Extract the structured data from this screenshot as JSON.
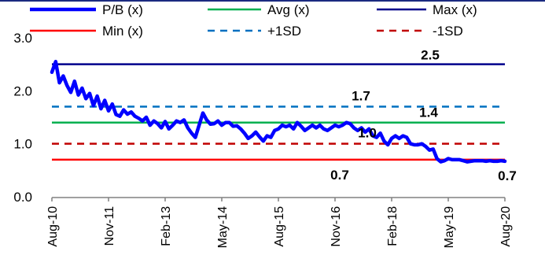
{
  "chart_data": {
    "type": "line",
    "ylim": [
      0.0,
      3.0
    ],
    "yticks": [
      "0.0",
      "1.0",
      "2.0",
      "3.0"
    ],
    "xticks": [
      "Aug-10",
      "Nov-11",
      "Feb-13",
      "May-14",
      "Aug-15",
      "Nov-16",
      "Feb-18",
      "May-19",
      "Aug-20"
    ],
    "grid": false,
    "legend": "top",
    "series": [
      {
        "name": "P/B (x)",
        "color": "#0000ff",
        "style": "solid-thick",
        "x": [
          "Aug-10",
          "Sep-10",
          "Oct-10",
          "Nov-10",
          "Dec-10",
          "Jan-11",
          "Feb-11",
          "Mar-11",
          "Apr-11",
          "May-11",
          "Jun-11",
          "Jul-11",
          "Aug-11",
          "Sep-11",
          "Oct-11",
          "Nov-11",
          "Dec-11",
          "Jan-12",
          "Feb-12",
          "Mar-12",
          "Apr-12",
          "May-12",
          "Jun-12",
          "Jul-12",
          "Aug-12",
          "Sep-12",
          "Oct-12",
          "Nov-12",
          "Dec-12",
          "Jan-13",
          "Feb-13",
          "Mar-13",
          "Apr-13",
          "May-13",
          "Jun-13",
          "Jul-13",
          "Aug-13",
          "Sep-13",
          "Oct-13",
          "Nov-13",
          "Dec-13",
          "Jan-14",
          "Feb-14",
          "Mar-14",
          "Apr-14",
          "May-14",
          "Jun-14",
          "Jul-14",
          "Aug-14",
          "Sep-14",
          "Oct-14",
          "Nov-14",
          "Dec-14",
          "Jan-15",
          "Feb-15",
          "Mar-15",
          "Apr-15",
          "May-15",
          "Jun-15",
          "Jul-15",
          "Aug-15",
          "Sep-15",
          "Oct-15",
          "Nov-15",
          "Dec-15",
          "Jan-16",
          "Feb-16",
          "Mar-16",
          "Apr-16",
          "May-16",
          "Jun-16",
          "Jul-16",
          "Aug-16",
          "Sep-16",
          "Oct-16",
          "Nov-16",
          "Dec-16",
          "Jan-17",
          "Feb-17",
          "Mar-17",
          "Apr-17",
          "May-17",
          "Jun-17",
          "Jul-17",
          "Aug-17",
          "Sep-17",
          "Oct-17",
          "Nov-17",
          "Dec-17",
          "Jan-18",
          "Feb-18",
          "Mar-18",
          "Apr-18",
          "May-18",
          "Jun-18",
          "Jul-18",
          "Aug-18",
          "Sep-18",
          "Oct-18",
          "Nov-18",
          "Dec-18",
          "Jan-19",
          "Feb-19",
          "Mar-19",
          "Apr-19",
          "May-19",
          "Jun-19",
          "Jul-19",
          "Aug-19",
          "Sep-19",
          "Oct-19",
          "Nov-19",
          "Dec-19",
          "Jan-20",
          "Feb-20",
          "Mar-20",
          "Apr-20",
          "May-20",
          "Jun-20",
          "Jul-20",
          "Aug-20"
        ],
        "values": [
          2.35,
          2.55,
          2.15,
          2.28,
          2.1,
          1.97,
          2.18,
          1.92,
          2.05,
          1.85,
          1.95,
          1.72,
          1.9,
          1.66,
          1.82,
          1.62,
          1.75,
          1.55,
          1.52,
          1.64,
          1.56,
          1.6,
          1.52,
          1.48,
          1.43,
          1.5,
          1.35,
          1.43,
          1.38,
          1.3,
          1.42,
          1.28,
          1.35,
          1.43,
          1.4,
          1.45,
          1.3,
          1.2,
          1.12,
          1.35,
          1.58,
          1.45,
          1.37,
          1.38,
          1.43,
          1.35,
          1.4,
          1.4,
          1.33,
          1.34,
          1.28,
          1.2,
          1.1,
          1.15,
          1.22,
          1.13,
          1.05,
          1.15,
          1.12,
          1.25,
          1.28,
          1.35,
          1.32,
          1.35,
          1.28,
          1.4,
          1.33,
          1.25,
          1.3,
          1.35,
          1.3,
          1.35,
          1.28,
          1.25,
          1.3,
          1.35,
          1.32,
          1.35,
          1.4,
          1.38,
          1.3,
          1.25,
          1.3,
          1.22,
          1.28,
          1.15,
          1.12,
          1.2,
          1.05,
          0.98,
          1.1,
          1.15,
          1.1,
          1.15,
          1.12,
          1.0,
          0.98,
          0.98,
          1.0,
          0.95,
          0.88,
          0.9,
          0.72,
          0.66,
          0.68,
          0.72,
          0.7,
          0.7,
          0.7,
          0.68,
          0.66,
          0.67,
          0.68,
          0.68,
          0.68,
          0.67,
          0.68,
          0.67,
          0.67,
          0.68,
          0.67
        ]
      },
      {
        "name": "Avg (x)",
        "color": "#00b050",
        "style": "solid",
        "value": 1.4
      },
      {
        "name": "Max (x)",
        "color": "#00008b",
        "style": "solid",
        "value": 2.5
      },
      {
        "name": "Min (x)",
        "color": "#ff0000",
        "style": "solid",
        "value": 0.7
      },
      {
        "name": "+1SD",
        "color": "#0070c0",
        "style": "dashed",
        "value": 1.7
      },
      {
        "name": "-1SD",
        "color": "#c00000",
        "style": "dashed",
        "value": 1.0
      }
    ],
    "data_labels": [
      {
        "text": "2.5",
        "series": "Max (x)",
        "value": 2.5
      },
      {
        "text": "1.7",
        "series": "+1SD",
        "value": 1.7
      },
      {
        "text": "1.4",
        "series": "Avg (x)",
        "value": 1.4
      },
      {
        "text": "1.0",
        "series": "-1SD",
        "value": 1.0
      },
      {
        "text": "0.7",
        "series": "Min (x)",
        "value": 0.7
      },
      {
        "text": "0.7",
        "series": "P/B (x)",
        "value": 0.7
      }
    ]
  }
}
